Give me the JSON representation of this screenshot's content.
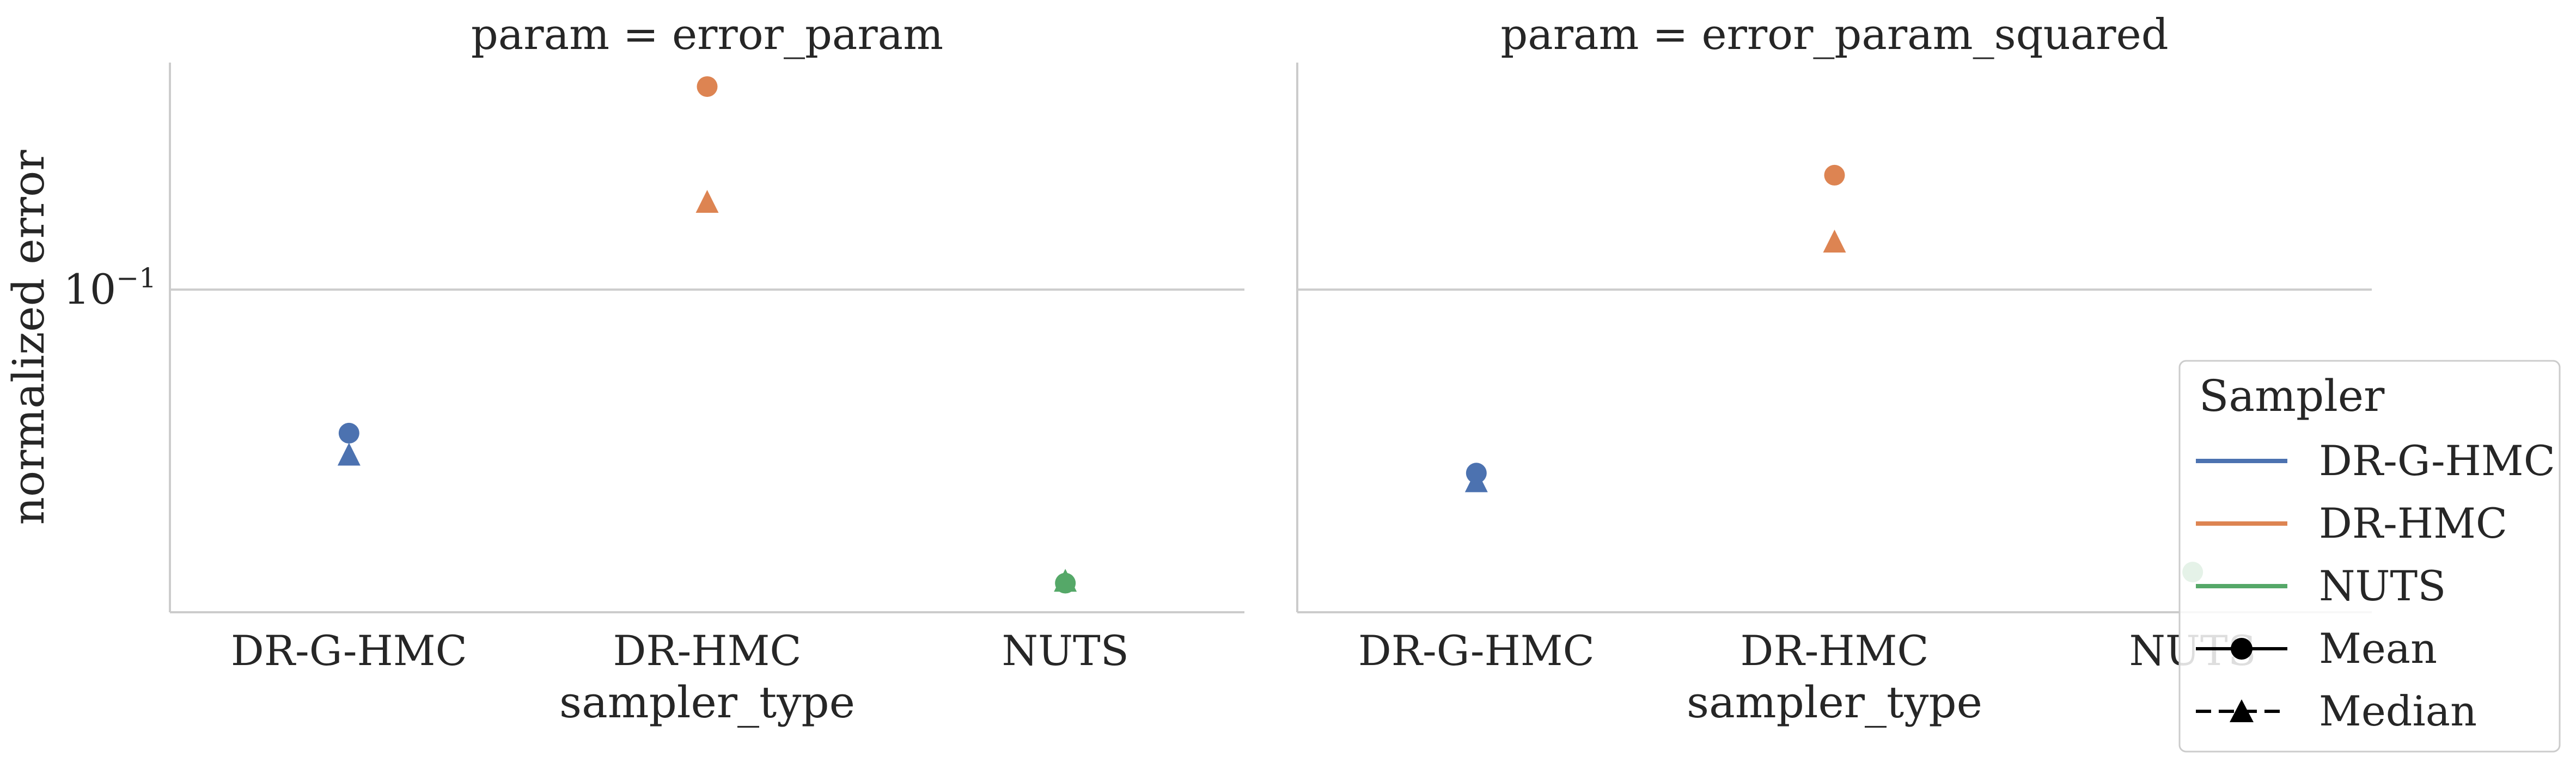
{
  "chart_data": [
    {
      "type": "scatter",
      "title": "param = error_param",
      "xlabel": "sampler_type",
      "ylabel": "normalized error",
      "yscale": "log",
      "ylim": [
        0.015,
        0.38
      ],
      "yticks": [
        {
          "value": 0.1,
          "label": "10",
          "exp": "−1"
        }
      ],
      "grid": "horizontal",
      "categories": [
        "DR-G-HMC",
        "DR-HMC",
        "NUTS"
      ],
      "series": [
        {
          "name": "DR-G-HMC",
          "color": "#4c72b0",
          "mean": [
            0.043,
            null,
            null
          ],
          "median": [
            0.038,
            null,
            null
          ]
        },
        {
          "name": "DR-HMC",
          "color": "#dd8452",
          "mean": [
            null,
            0.33,
            null
          ],
          "median": [
            null,
            0.168,
            null
          ]
        },
        {
          "name": "NUTS",
          "color": "#55a868",
          "mean": [
            null,
            null,
            0.0178
          ],
          "median": [
            null,
            null,
            0.0181
          ]
        }
      ]
    },
    {
      "type": "scatter",
      "title": "param = error_param_squared",
      "xlabel": "sampler_type",
      "ylabel": "",
      "yscale": "log",
      "ylim": [
        0.015,
        0.38
      ],
      "grid": "horizontal",
      "categories": [
        "DR-G-HMC",
        "DR-HMC",
        "NUTS"
      ],
      "series": [
        {
          "name": "DR-G-HMC",
          "color": "#4c72b0",
          "mean": [
            0.034,
            null,
            null
          ],
          "median": [
            0.0325,
            null,
            null
          ]
        },
        {
          "name": "DR-HMC",
          "color": "#dd8452",
          "mean": [
            null,
            0.196,
            null
          ],
          "median": [
            null,
            0.133,
            null
          ]
        },
        {
          "name": "NUTS",
          "color": "#55a868",
          "mean": [
            null,
            null,
            0.019
          ],
          "median": [
            null,
            null,
            null
          ]
        }
      ]
    }
  ],
  "legend": {
    "title": "Sampler",
    "placement": "right",
    "entries": [
      {
        "label": "DR-G-HMC",
        "kind": "line",
        "color": "#4c72b0"
      },
      {
        "label": "DR-HMC",
        "kind": "line",
        "color": "#dd8452"
      },
      {
        "label": "NUTS",
        "kind": "line",
        "color": "#55a868"
      },
      {
        "label": "Mean",
        "kind": "marker-circle",
        "color": "#000000"
      },
      {
        "label": "Median",
        "kind": "marker-triangle",
        "color": "#000000"
      }
    ]
  }
}
